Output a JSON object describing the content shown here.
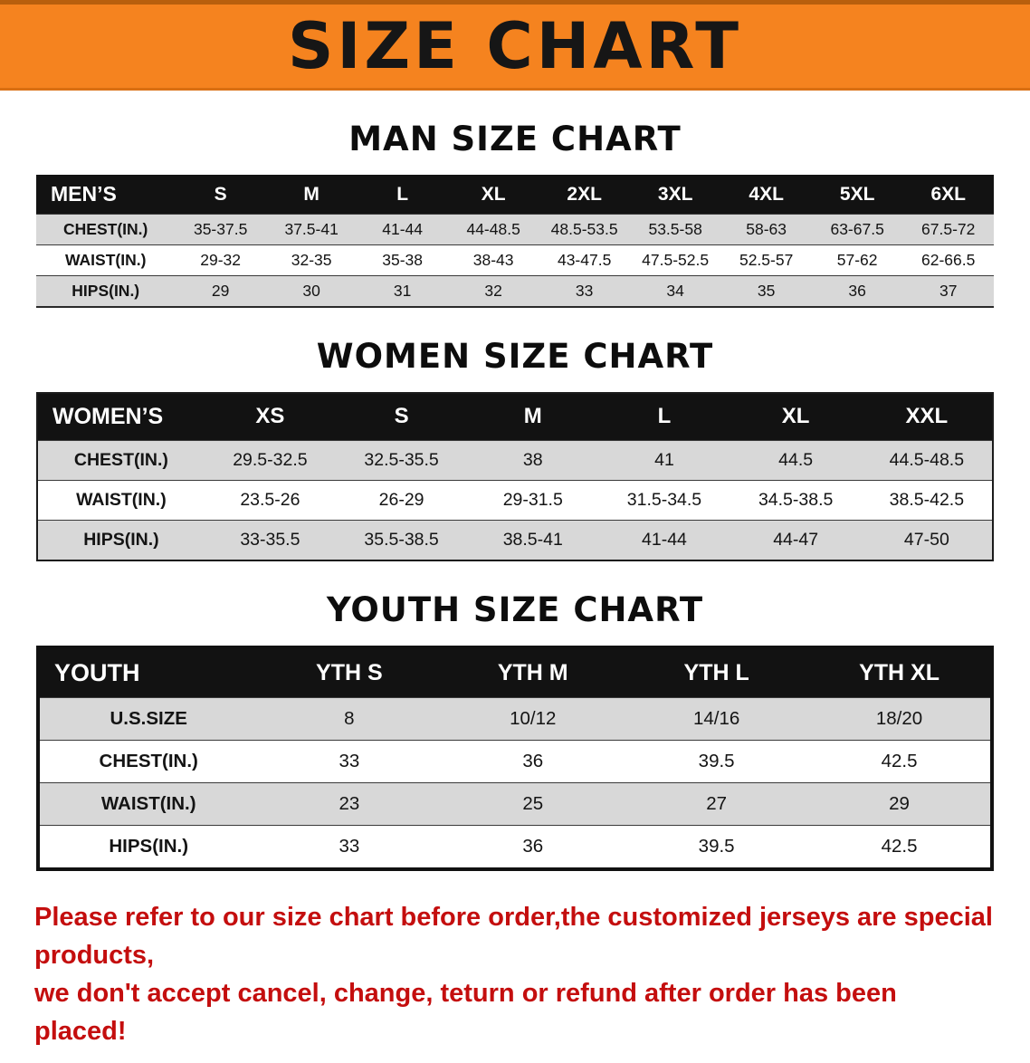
{
  "banner": {
    "title": "SIZE CHART"
  },
  "sections": [
    {
      "key": "men",
      "heading": "MAN SIZE CHART",
      "table": {
        "header": [
          "MEN’S",
          "S",
          "M",
          "L",
          "XL",
          "2XL",
          "3XL",
          "4XL",
          "5XL",
          "6XL"
        ],
        "rows": [
          [
            "CHEST(IN.)",
            "35-37.5",
            "37.5-41",
            "41-44",
            "44-48.5",
            "48.5-53.5",
            "53.5-58",
            "58-63",
            "63-67.5",
            "67.5-72"
          ],
          [
            "WAIST(IN.)",
            "29-32",
            "32-35",
            "35-38",
            "38-43",
            "43-47.5",
            "47.5-52.5",
            "52.5-57",
            "57-62",
            "62-66.5"
          ],
          [
            "HIPS(IN.)",
            "29",
            "30",
            "31",
            "32",
            "33",
            "34",
            "35",
            "36",
            "37"
          ]
        ]
      }
    },
    {
      "key": "women",
      "heading": "WOMEN SIZE CHART",
      "table": {
        "header": [
          "WOMEN’S",
          "XS",
          "S",
          "M",
          "L",
          "XL",
          "XXL"
        ],
        "rows": [
          [
            "CHEST(IN.)",
            "29.5-32.5",
            "32.5-35.5",
            "38",
            "41",
            "44.5",
            "44.5-48.5"
          ],
          [
            "WAIST(IN.)",
            "23.5-26",
            "26-29",
            "29-31.5",
            "31.5-34.5",
            "34.5-38.5",
            "38.5-42.5"
          ],
          [
            "HIPS(IN.)",
            "33-35.5",
            "35.5-38.5",
            "38.5-41",
            "41-44",
            "44-47",
            "47-50"
          ]
        ]
      }
    },
    {
      "key": "youth",
      "heading": "YOUTH SIZE CHART",
      "table": {
        "header": [
          "YOUTH",
          "YTH S",
          "YTH M",
          "YTH L",
          "YTH XL"
        ],
        "rows": [
          [
            "U.S.SIZE",
            "8",
            "10/12",
            "14/16",
            "18/20"
          ],
          [
            "CHEST(IN.)",
            "33",
            "36",
            "39.5",
            "42.5"
          ],
          [
            "WAIST(IN.)",
            "23",
            "25",
            "27",
            "29"
          ],
          [
            "HIPS(IN.)",
            "33",
            "36",
            "39.5",
            "42.5"
          ]
        ]
      }
    }
  ],
  "disclaimer": {
    "line1": "Please refer to our size chart before order,the customized jerseys are special products,",
    "line2": "we don't accept cancel, change, teturn or refund after order has been placed!"
  },
  "colors": {
    "banner_orange": "#F5831F",
    "header_black": "#121212",
    "stripe_gray": "#D8D8D8",
    "disclaimer_red": "#C40E0E"
  }
}
